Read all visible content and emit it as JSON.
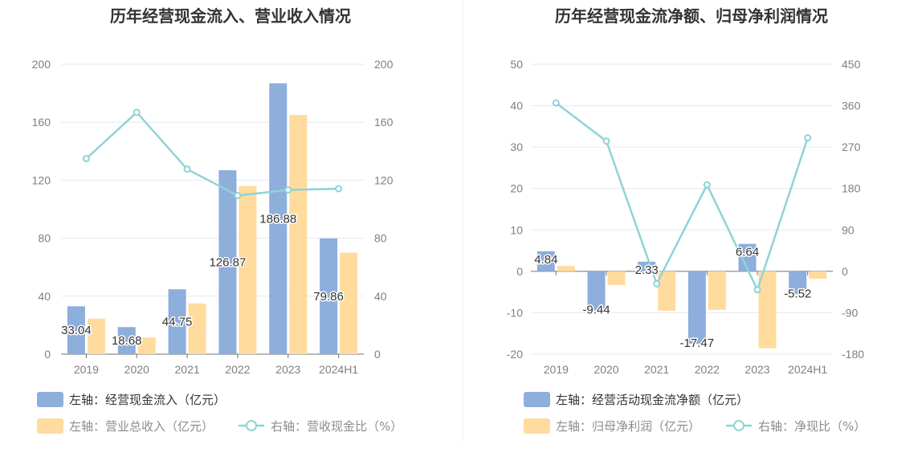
{
  "chart_data": [
    {
      "type": "bar",
      "title": "历年经营现金流入、营业收入情况",
      "categories": [
        "2019",
        "2020",
        "2021",
        "2022",
        "2023",
        "2024H1"
      ],
      "series": [
        {
          "name": "左轴：经营现金流入（亿元）",
          "axis": "left",
          "kind": "bar",
          "color": "#8eaedc",
          "values": [
            33.04,
            18.68,
            44.75,
            126.87,
            186.88,
            79.86
          ],
          "labels": [
            "33.04",
            "18.68",
            "44.75",
            "126.87",
            "186.88",
            "79.86"
          ]
        },
        {
          "name": "左轴：营业总收入（亿元）",
          "axis": "left",
          "kind": "bar",
          "color": "#ffdb9e",
          "values": [
            24.5,
            11.5,
            35,
            116,
            165,
            70
          ]
        },
        {
          "name": "右轴：营收现金比（%）",
          "axis": "right",
          "kind": "line",
          "color": "#8fd3d6",
          "values": [
            134.9,
            166.8,
            127.6,
            109.4,
            113.3,
            114.1
          ]
        }
      ],
      "y_left": {
        "min": 0,
        "max": 200,
        "ticks": [
          "0",
          "40",
          "80",
          "120",
          "160",
          "200"
        ]
      },
      "y_right": {
        "min": 0,
        "max": 200,
        "ticks": [
          "0",
          "40",
          "80",
          "120",
          "160",
          "200"
        ]
      },
      "legend_position": "bottom-left",
      "grid": true
    },
    {
      "type": "bar",
      "title": "历年经营现金流净额、归母净利润情况",
      "categories": [
        "2019",
        "2020",
        "2021",
        "2022",
        "2023",
        "2024H1"
      ],
      "series": [
        {
          "name": "左轴：经营活动现金流净额（亿元）",
          "axis": "left",
          "kind": "bar",
          "color": "#8eaedc",
          "values": [
            4.84,
            -9.44,
            2.33,
            -17.47,
            6.64,
            -5.52
          ],
          "labels": [
            "4.84",
            "-9.44",
            "2.33",
            "-17.47",
            "6.64",
            "-5.52"
          ]
        },
        {
          "name": "左轴：归母净利润（亿元）",
          "axis": "left",
          "kind": "bar",
          "color": "#ffdb9e",
          "values": [
            1.3,
            -3.3,
            -9.5,
            -9.3,
            -18.6,
            -1.8
          ]
        },
        {
          "name": "右轴：净现比（%）",
          "axis": "right",
          "kind": "line",
          "color": "#8fd3d6",
          "values": [
            366,
            283,
            -27,
            188,
            -40,
            290
          ]
        }
      ],
      "y_left": {
        "min": -20,
        "max": 50,
        "ticks": [
          "-20",
          "-10",
          "0",
          "10",
          "20",
          "30",
          "40",
          "50"
        ]
      },
      "y_right": {
        "min": -180,
        "max": 450,
        "ticks": [
          "-180",
          "-90",
          "0",
          "90",
          "180",
          "270",
          "360",
          "450"
        ]
      },
      "legend_position": "bottom-left",
      "grid": true
    }
  ]
}
